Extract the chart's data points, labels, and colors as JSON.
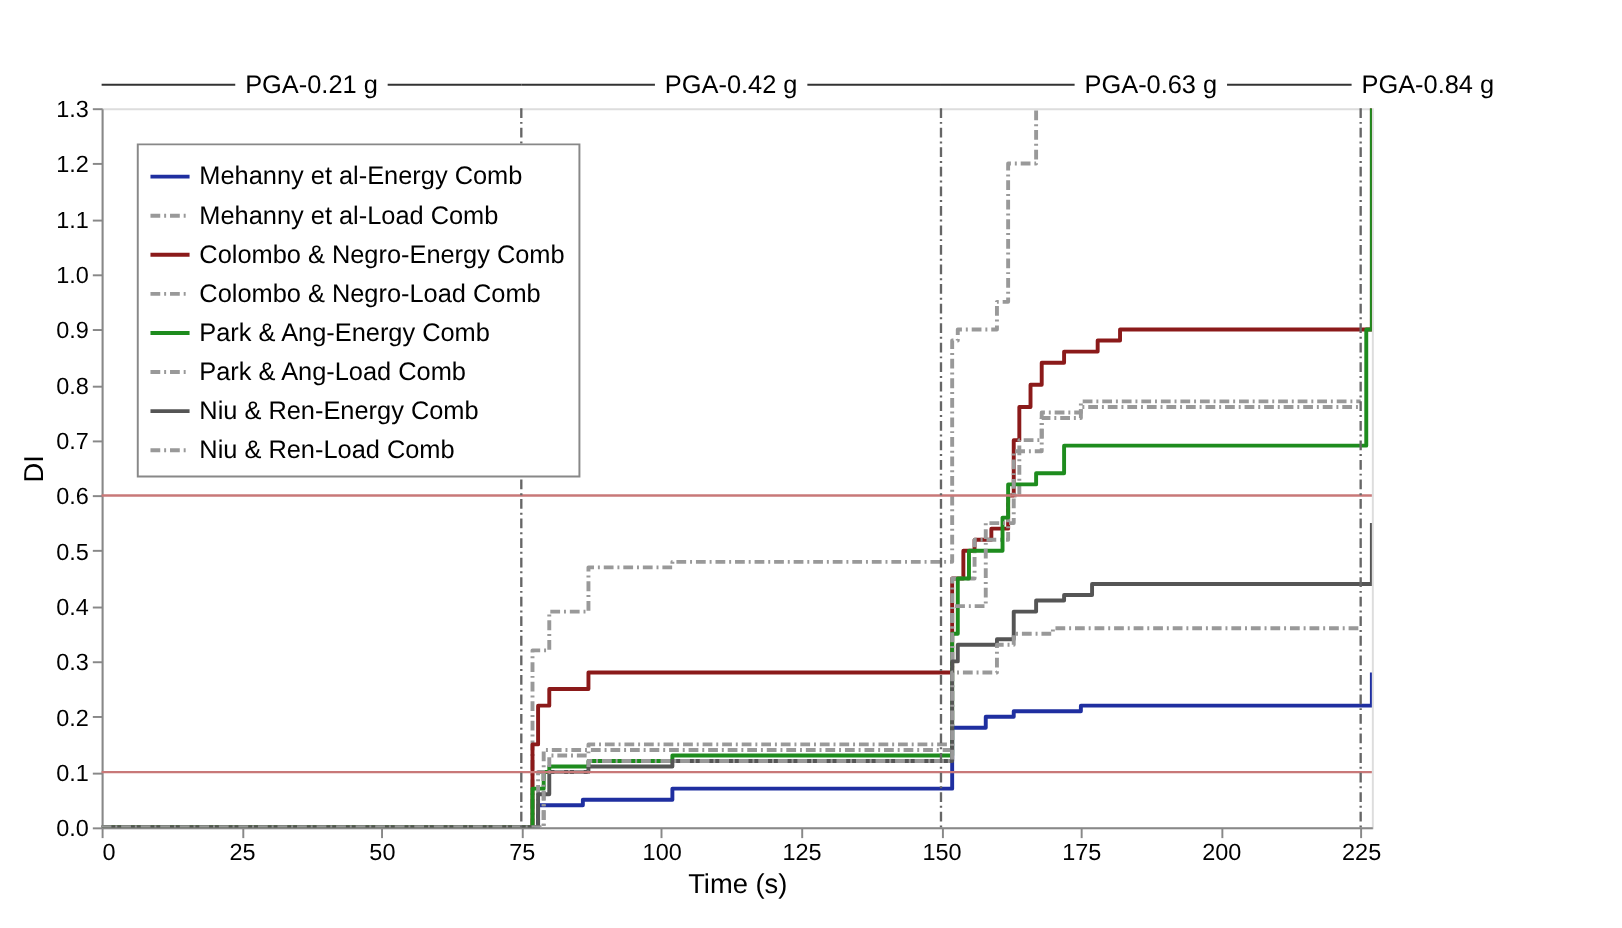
{
  "chart_data": {
    "type": "step",
    "xlabel": "Time (s)",
    "ylabel": "DI",
    "xlim": [
      0,
      227
    ],
    "ylim": [
      0,
      1.3
    ],
    "xticks": [
      0,
      25,
      50,
      75,
      100,
      125,
      150,
      175,
      200,
      225
    ],
    "yticks": [
      {
        "value": 0,
        "label": "0.0"
      },
      {
        "value": 0.1,
        "label": "0.1"
      },
      {
        "value": 0.2,
        "label": "0.2"
      },
      {
        "value": 0.3,
        "label": "0.3"
      },
      {
        "value": 0.4,
        "label": "0.4"
      },
      {
        "value": 0.5,
        "label": "0.5"
      },
      {
        "value": 0.6,
        "label": "0.6"
      },
      {
        "value": 0.7,
        "label": "0.7"
      },
      {
        "value": 0.8,
        "label": "0.8"
      },
      {
        "value": 0.9,
        "label": "0.9"
      },
      {
        "value": 1.0,
        "label": "1.0"
      },
      {
        "value": 1.1,
        "label": "1.1"
      },
      {
        "value": 1.2,
        "label": "1.2"
      },
      {
        "value": 1.3,
        "label": "1.3"
      }
    ],
    "grid": false,
    "legend": "top left",
    "marker": "none",
    "annotations": [
      "PGA-0.21 g",
      "PGA-0.42 g",
      "PGA-0.63 g",
      "PGA-0.84 g"
    ],
    "ref_lines": [
      {
        "axis": "y",
        "value": 0.6,
        "color": "#c87878",
        "line_style": "solid"
      },
      {
        "axis": "y",
        "value": 0.1,
        "color": "#c87878",
        "line_style": "solid"
      },
      {
        "axis": "x",
        "value": 75,
        "color": "#666666",
        "line_style": "dashed"
      },
      {
        "axis": "x",
        "value": 150,
        "color": "#666666",
        "line_style": "dashed"
      },
      {
        "axis": "x",
        "value": 225,
        "color": "#666666",
        "line_style": "dashed"
      }
    ],
    "series": [
      {
        "name": "Mehanny et al-Energy Comb",
        "color": "#1f2fa0",
        "line_style": "solid",
        "x": [
          0,
          77,
          78,
          86,
          102,
          151,
          152,
          158,
          163,
          175,
          225,
          227
        ],
        "values": [
          0,
          0,
          0.04,
          0.05,
          0.07,
          0.07,
          0.18,
          0.2,
          0.21,
          0.22,
          0.22,
          0.28
        ]
      },
      {
        "name": "Mehanny et al-Load Comb",
        "color": "#999999",
        "line_style": "dashed",
        "x": [
          0,
          76,
          77,
          80,
          87,
          102,
          151,
          152,
          153,
          160,
          162,
          167
        ],
        "values": [
          0,
          0,
          0.32,
          0.39,
          0.47,
          0.48,
          0.48,
          0.88,
          0.9,
          0.95,
          1.2,
          1.3
        ]
      },
      {
        "name": "Colombo & Negro-Energy Comb",
        "color": "#8b1a1a",
        "line_style": "solid",
        "x": [
          0,
          76,
          77,
          78,
          80,
          87,
          151,
          152,
          154,
          156,
          159,
          162,
          163,
          164,
          166,
          168,
          172,
          178,
          182,
          225,
          227
        ],
        "values": [
          0,
          0,
          0.15,
          0.22,
          0.25,
          0.28,
          0.28,
          0.45,
          0.5,
          0.52,
          0.54,
          0.6,
          0.7,
          0.76,
          0.8,
          0.84,
          0.86,
          0.88,
          0.9,
          0.9,
          1.3
        ]
      },
      {
        "name": "Colombo & Negro-Load Comb",
        "color": "#999999",
        "line_style": "dashed",
        "x": [
          0,
          78,
          79,
          87,
          151,
          152,
          156,
          162,
          164,
          168,
          175,
          225
        ],
        "values": [
          0,
          0,
          0.14,
          0.15,
          0.15,
          0.45,
          0.52,
          0.6,
          0.7,
          0.75,
          0.77,
          0.77
        ]
      },
      {
        "name": "Park & Ang-Energy Comb",
        "color": "#1e8c1e",
        "line_style": "solid",
        "x": [
          0,
          76,
          77,
          79,
          80,
          87,
          102,
          151,
          152,
          153,
          155,
          161,
          162,
          167,
          172,
          225,
          226,
          227
        ],
        "values": [
          0,
          0,
          0.07,
          0.1,
          0.11,
          0.12,
          0.13,
          0.13,
          0.35,
          0.45,
          0.5,
          0.56,
          0.62,
          0.64,
          0.69,
          0.69,
          0.9,
          1.3
        ]
      },
      {
        "name": "Park & Ang-Load Comb",
        "color": "#999999",
        "line_style": "dashed",
        "x": [
          0,
          77,
          78,
          80,
          87,
          151,
          152,
          158,
          163,
          168,
          175,
          225
        ],
        "values": [
          0,
          0,
          0.1,
          0.13,
          0.14,
          0.14,
          0.4,
          0.55,
          0.68,
          0.74,
          0.76,
          0.76
        ]
      },
      {
        "name": "Niu & Ren-Energy Comb",
        "color": "#555555",
        "line_style": "solid",
        "x": [
          0,
          77,
          78,
          80,
          87,
          102,
          151,
          152,
          153,
          160,
          163,
          167,
          172,
          177,
          225,
          227
        ],
        "values": [
          0,
          0,
          0.06,
          0.1,
          0.11,
          0.12,
          0.12,
          0.3,
          0.33,
          0.34,
          0.39,
          0.41,
          0.42,
          0.44,
          0.44,
          0.55
        ]
      },
      {
        "name": "Niu & Ren-Load Comb",
        "color": "#999999",
        "line_style": "dashed",
        "x": [
          0,
          78,
          79,
          87,
          151,
          152,
          160,
          163,
          170,
          225
        ],
        "values": [
          0,
          0,
          0.1,
          0.12,
          0.12,
          0.28,
          0.33,
          0.35,
          0.36,
          0.36
        ]
      }
    ]
  }
}
